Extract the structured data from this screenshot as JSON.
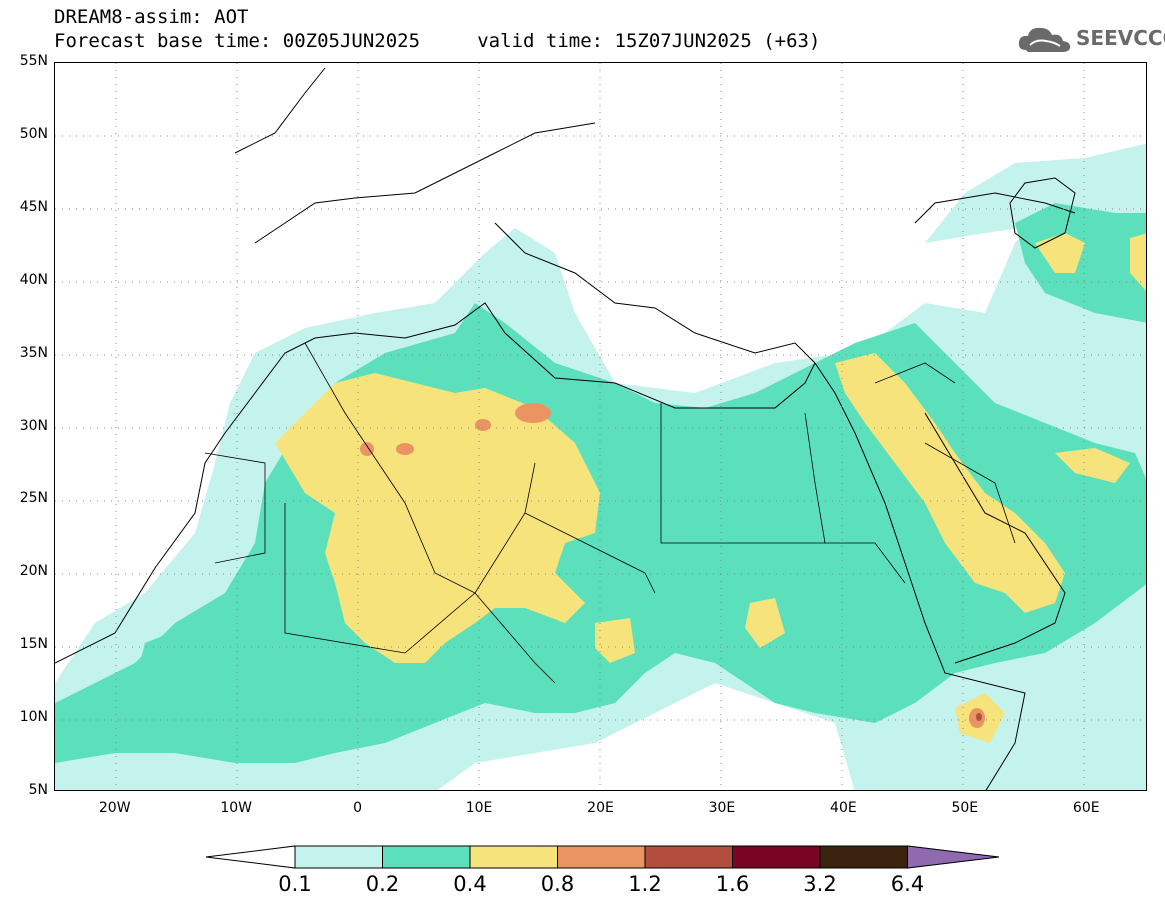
{
  "header": {
    "title_line1": "DREAM8-assim: AOT",
    "title_line2": "Forecast base time: 00Z05JUN2025     valid time: 15Z07JUN2025 (+63)",
    "logo_text": "SEEVCCC",
    "logo_icon": "cloud-icon"
  },
  "map": {
    "lat_labels": [
      "55N",
      "50N",
      "45N",
      "40N",
      "35N",
      "30N",
      "25N",
      "20N",
      "15N",
      "10N",
      "5N"
    ],
    "lon_labels": [
      "20W",
      "10W",
      "0",
      "10E",
      "20E",
      "30E",
      "40E",
      "50E",
      "60E"
    ],
    "extent": {
      "lon_min": -25,
      "lon_max": 65,
      "lat_min": 5,
      "lat_max": 55
    }
  },
  "colorbar": {
    "labels": [
      "0.1",
      "0.2",
      "0.4",
      "0.8",
      "1.2",
      "1.6",
      "3.2",
      "6.4"
    ],
    "colors": [
      "#ffffff",
      "#c4f2ec",
      "#5ce0bc",
      "#f6e37c",
      "#ea9463",
      "#b24e3b",
      "#7a0522",
      "#3a2410",
      "#8f6ab0"
    ]
  }
}
